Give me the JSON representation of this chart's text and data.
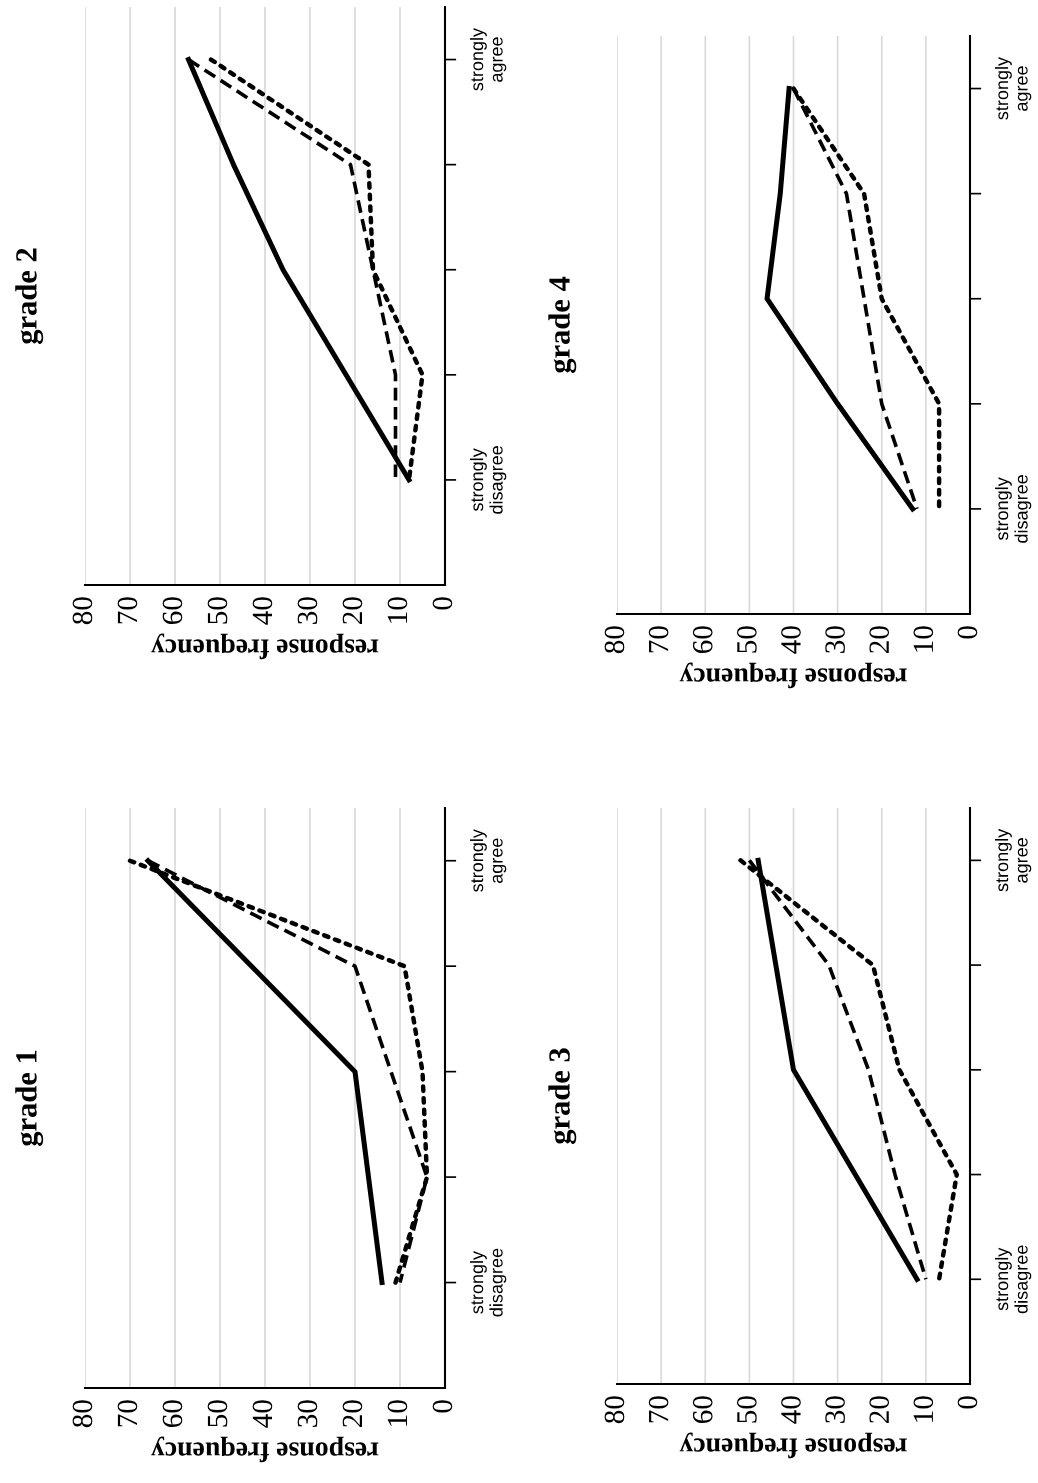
{
  "chart_data": [
    {
      "type": "line",
      "orientation": "horizontal",
      "title": "grade 1",
      "xlabel": "response frequency",
      "categories": [
        "strongly agree",
        null,
        null,
        null,
        "strongly disagree"
      ],
      "xlim": [
        80,
        0
      ],
      "xticks": [
        80,
        70,
        60,
        50,
        40,
        30,
        20,
        10,
        0
      ],
      "grid": "x",
      "series": [
        {
          "color": "#000000",
          "line_style": "solid",
          "values": [
            66,
            43,
            20,
            17,
            14
          ]
        },
        {
          "color": "#000000",
          "line_style": "dashed",
          "values": [
            66,
            20,
            12,
            4,
            10
          ]
        },
        {
          "color": "#000000",
          "line_style": "dotted",
          "values": [
            70,
            9,
            5,
            4,
            11
          ]
        }
      ]
    },
    {
      "type": "line",
      "orientation": "horizontal",
      "title": "grade 2",
      "xlabel": "response frequency",
      "categories": [
        "strongly agree",
        null,
        null,
        null,
        "strongly disagree"
      ],
      "xlim": [
        80,
        0
      ],
      "xticks": [
        80,
        70,
        60,
        50,
        40,
        30,
        20,
        10,
        0
      ],
      "grid": "x",
      "series": [
        {
          "color": "#000000",
          "line_style": "solid",
          "values": [
            57,
            47,
            36,
            22,
            8
          ]
        },
        {
          "color": "#000000",
          "line_style": "dashed",
          "values": [
            57,
            21,
            16,
            11,
            11
          ]
        },
        {
          "color": "#000000",
          "line_style": "dotted",
          "values": [
            52,
            17,
            16,
            5,
            8
          ]
        }
      ]
    },
    {
      "type": "line",
      "orientation": "horizontal",
      "title": "grade 3",
      "xlabel": "response frequency",
      "categories": [
        "strongly agree",
        null,
        null,
        null,
        "strongly disagree"
      ],
      "xlim": [
        80,
        0
      ],
      "xticks": [
        80,
        70,
        60,
        50,
        40,
        30,
        20,
        10,
        0
      ],
      "grid": "x",
      "series": [
        {
          "color": "#000000",
          "line_style": "solid",
          "values": [
            48,
            44,
            40,
            26,
            12
          ]
        },
        {
          "color": "#000000",
          "line_style": "dashed",
          "values": [
            50,
            32,
            23,
            17,
            10
          ]
        },
        {
          "color": "#000000",
          "line_style": "dotted",
          "values": [
            52,
            22,
            16,
            3,
            7
          ]
        }
      ]
    },
    {
      "type": "line",
      "orientation": "horizontal",
      "title": "grade 4",
      "xlabel": "response frequency",
      "categories": [
        "strongly agree",
        null,
        null,
        null,
        "strongly disagree"
      ],
      "xlim": [
        80,
        0
      ],
      "xticks": [
        80,
        70,
        60,
        50,
        40,
        30,
        20,
        10,
        0
      ],
      "grid": "x",
      "series": [
        {
          "color": "#000000",
          "line_style": "solid",
          "values": [
            41,
            43,
            46,
            30,
            13
          ]
        },
        {
          "color": "#000000",
          "line_style": "dashed",
          "values": [
            40,
            28,
            24,
            20,
            12
          ]
        },
        {
          "color": "#000000",
          "line_style": "dotted",
          "values": [
            40,
            24,
            20,
            7,
            7
          ]
        }
      ]
    }
  ]
}
